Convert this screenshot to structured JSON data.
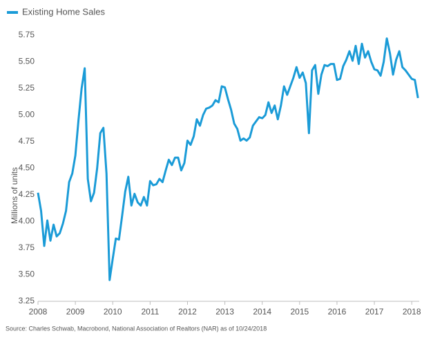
{
  "chart_data": {
    "type": "line",
    "y_label": "Millions of units",
    "source": "Source: Charles Schwab, Macrobond, National Association of Realtors (NAR) as of 10/24/2018",
    "x": [
      2008,
      2008.083,
      2008.167,
      2008.25,
      2008.333,
      2008.417,
      2008.5,
      2008.583,
      2008.667,
      2008.75,
      2008.833,
      2008.917,
      2009,
      2009.083,
      2009.167,
      2009.25,
      2009.333,
      2009.417,
      2009.5,
      2009.583,
      2009.667,
      2009.75,
      2009.833,
      2009.917,
      2010,
      2010.083,
      2010.167,
      2010.25,
      2010.333,
      2010.417,
      2010.5,
      2010.583,
      2010.667,
      2010.75,
      2010.833,
      2010.917,
      2011,
      2011.083,
      2011.167,
      2011.25,
      2011.333,
      2011.417,
      2011.5,
      2011.583,
      2011.667,
      2011.75,
      2011.833,
      2011.917,
      2012,
      2012.083,
      2012.167,
      2012.25,
      2012.333,
      2012.417,
      2012.5,
      2012.583,
      2012.667,
      2012.75,
      2012.833,
      2012.917,
      2013,
      2013.083,
      2013.167,
      2013.25,
      2013.333,
      2013.417,
      2013.5,
      2013.583,
      2013.667,
      2013.75,
      2013.833,
      2013.917,
      2014,
      2014.083,
      2014.167,
      2014.25,
      2014.333,
      2014.417,
      2014.5,
      2014.583,
      2014.667,
      2014.75,
      2014.833,
      2014.917,
      2015,
      2015.083,
      2015.167,
      2015.25,
      2015.333,
      2015.417,
      2015.5,
      2015.583,
      2015.667,
      2015.75,
      2015.833,
      2015.917,
      2016,
      2016.083,
      2016.167,
      2016.25,
      2016.333,
      2016.417,
      2016.5,
      2016.583,
      2016.667,
      2016.75,
      2016.833,
      2016.917,
      2017,
      2017.083,
      2017.167,
      2017.25,
      2017.333,
      2017.417,
      2017.5,
      2017.583,
      2017.667,
      2017.75,
      2017.833,
      2017.917,
      2018,
      2018.083,
      2018.167
    ],
    "series": [
      {
        "name": "Existing Home Sales",
        "color": "#1a9bd7",
        "values": [
          4.27,
          4.1,
          3.77,
          4.01,
          3.82,
          3.97,
          3.86,
          3.89,
          3.98,
          4.1,
          4.37,
          4.45,
          4.62,
          4.95,
          5.25,
          5.44,
          4.4,
          4.19,
          4.27,
          4.5,
          4.83,
          4.88,
          4.45,
          3.45,
          3.65,
          3.84,
          3.83,
          4.05,
          4.28,
          4.42,
          4.15,
          4.26,
          4.18,
          4.15,
          4.23,
          4.15,
          4.38,
          4.34,
          4.35,
          4.4,
          4.37,
          4.48,
          4.58,
          4.53,
          4.6,
          4.6,
          4.48,
          4.55,
          4.76,
          4.72,
          4.8,
          4.96,
          4.9,
          5.0,
          5.06,
          5.07,
          5.09,
          5.14,
          5.12,
          5.27,
          5.26,
          5.15,
          5.05,
          4.92,
          4.87,
          4.76,
          4.78,
          4.76,
          4.79,
          4.9,
          4.94,
          4.98,
          4.97,
          5.0,
          5.12,
          5.02,
          5.09,
          4.96,
          5.09,
          5.27,
          5.19,
          5.27,
          5.35,
          5.45,
          5.35,
          5.4,
          5.3,
          4.83,
          5.42,
          5.47,
          5.2,
          5.38,
          5.47,
          5.46,
          5.48,
          5.48,
          5.33,
          5.34,
          5.46,
          5.52,
          5.6,
          5.51,
          5.65,
          5.48,
          5.67,
          5.54,
          5.6,
          5.5,
          5.43,
          5.42,
          5.37,
          5.5,
          5.72,
          5.58,
          5.38,
          5.52,
          5.6,
          5.45,
          5.42,
          5.38,
          5.34,
          5.33,
          5.16
        ]
      }
    ],
    "xlim": [
      2008,
      2018.2
    ],
    "xticks": [
      2008,
      2009,
      2010,
      2011,
      2012,
      2013,
      2014,
      2015,
      2016,
      2017,
      2018
    ],
    "ylim": [
      3.25,
      5.75
    ],
    "yticks": [
      {
        "value": 3.25,
        "label": "3.25"
      },
      {
        "value": 3.5,
        "label": "3.50"
      },
      {
        "value": 3.75,
        "label": "3.75"
      },
      {
        "value": 4,
        "label": "4.00"
      },
      {
        "value": 4.25,
        "label": "4.25"
      },
      {
        "value": 4.5,
        "label": "4.50"
      },
      {
        "value": 4.75,
        "label": "4.75"
      },
      {
        "value": 5,
        "label": "5.00"
      },
      {
        "value": 5.25,
        "label": "5.25"
      },
      {
        "value": 5.5,
        "label": "5.50"
      },
      {
        "value": 5.75,
        "label": "5.75"
      }
    ],
    "legend": "top-left"
  }
}
